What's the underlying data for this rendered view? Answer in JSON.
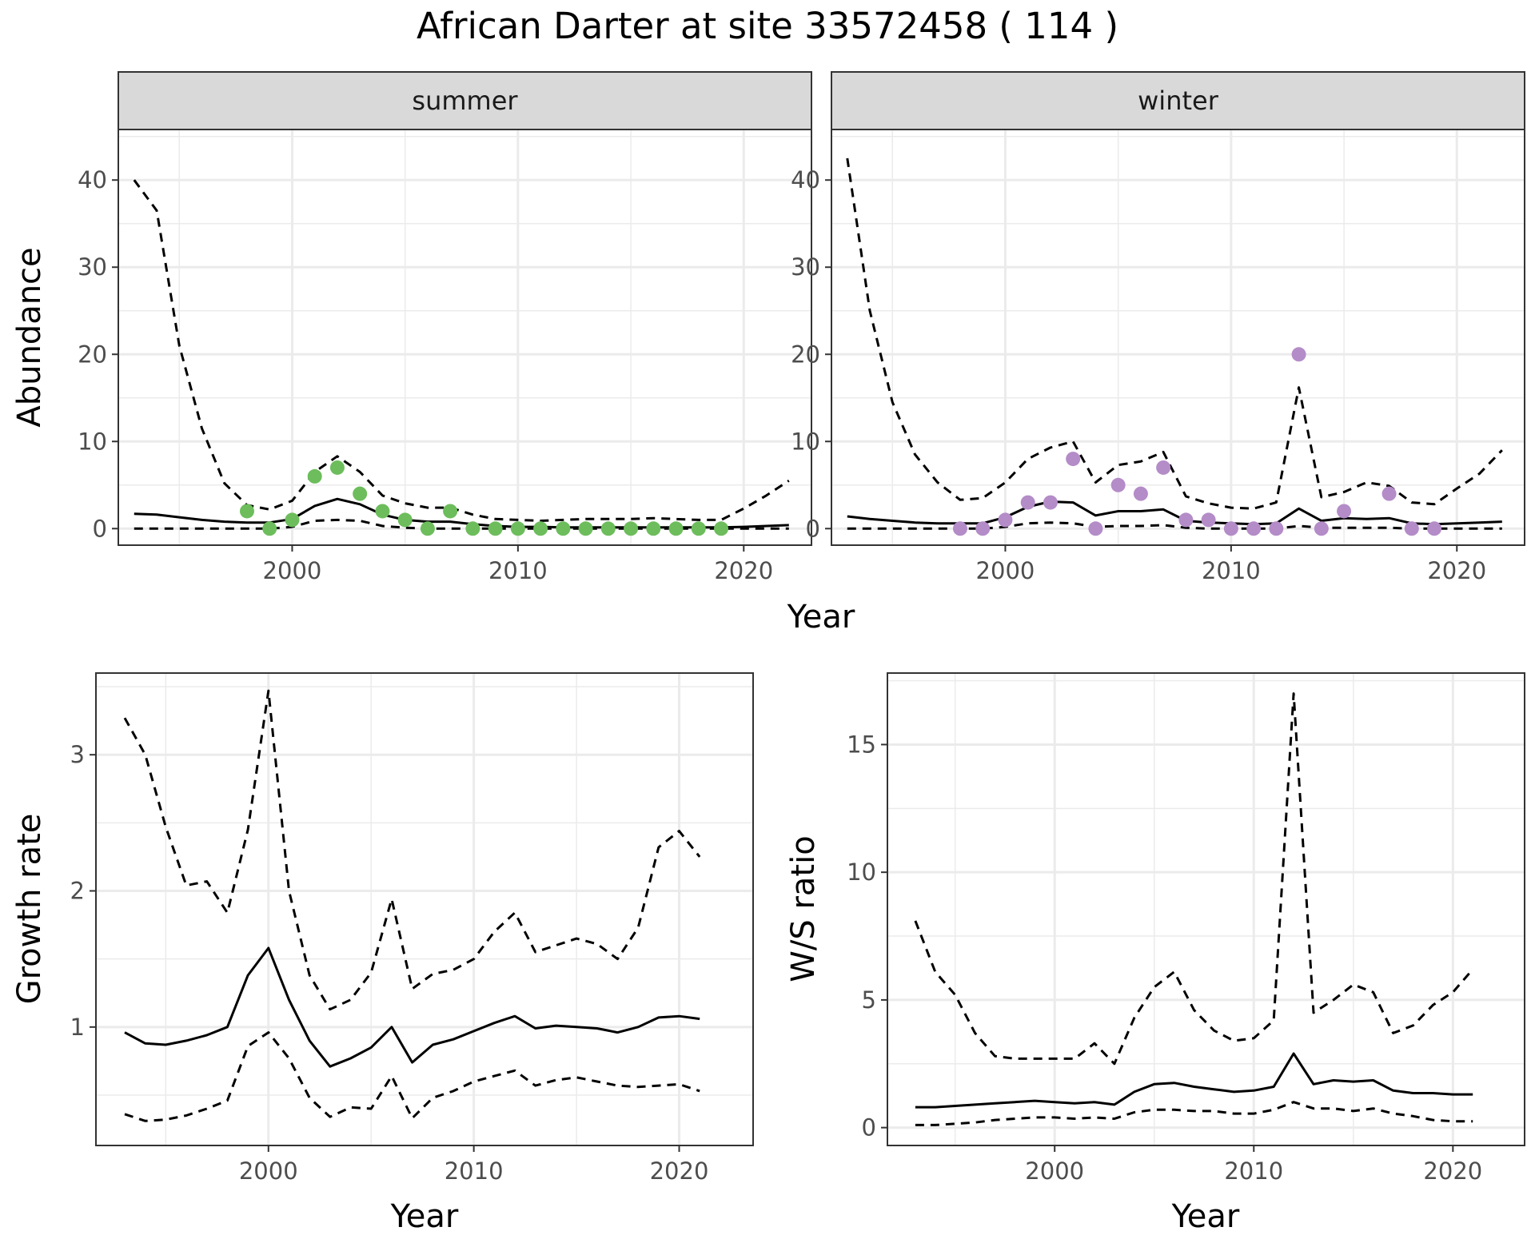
{
  "figure_title": "African Darter at site 33572458 ( 114 )",
  "colors": {
    "summer_points": "#6dbd5c",
    "winter_points": "#b48cc8",
    "lines": "#000000",
    "grid": "#ebebeb",
    "strip_fill": "#d9d9d9"
  },
  "chart_data": [
    {
      "type": "line",
      "panel": "summer",
      "strip_label": "summer",
      "xlabel": "Year",
      "ylabel": "Abundance",
      "xlim": [
        1992.3,
        2023.0
      ],
      "ylim": [
        -1.9,
        45.8
      ],
      "x_ticks": [
        2000,
        2010,
        2020
      ],
      "y_ticks": [
        0,
        10,
        20,
        30,
        40
      ],
      "grid": true,
      "series": [
        {
          "role": "mean",
          "style": "solid",
          "x": [
            1993,
            1994,
            1995,
            1996,
            1997,
            1998,
            1999,
            2000,
            2001,
            2002,
            2003,
            2004,
            2005,
            2006,
            2007,
            2008,
            2009,
            2010,
            2011,
            2012,
            2013,
            2014,
            2015,
            2016,
            2017,
            2018,
            2019,
            2020,
            2021,
            2022
          ],
          "y": [
            1.7,
            1.6,
            1.3,
            1.0,
            0.8,
            0.7,
            0.7,
            1.1,
            2.6,
            3.4,
            2.8,
            1.6,
            1.0,
            0.8,
            0.8,
            0.5,
            0.3,
            0.2,
            0.2,
            0.15,
            0.15,
            0.15,
            0.15,
            0.15,
            0.15,
            0.15,
            0.15,
            0.2,
            0.3,
            0.4
          ]
        },
        {
          "role": "upper",
          "style": "dashed",
          "x": [
            1993,
            1994,
            1995,
            1996,
            1997,
            1998,
            1999,
            2000,
            2001,
            2002,
            2003,
            2004,
            2005,
            2006,
            2007,
            2008,
            2009,
            2010,
            2011,
            2012,
            2013,
            2014,
            2015,
            2016,
            2017,
            2018,
            2019,
            2020,
            2021,
            2022
          ],
          "y": [
            40,
            36.5,
            21,
            11.5,
            5.2,
            2.7,
            2.2,
            3.2,
            6.5,
            8.3,
            6.5,
            3.8,
            2.9,
            2.4,
            2.4,
            1.6,
            1.1,
            1.0,
            0.9,
            1.0,
            1.1,
            1.1,
            1.1,
            1.2,
            1.1,
            1.0,
            1.0,
            2.3,
            3.8,
            5.5
          ]
        },
        {
          "role": "lower",
          "style": "dashed",
          "x": [
            1993,
            1994,
            1995,
            1996,
            1997,
            1998,
            1999,
            2000,
            2001,
            2002,
            2003,
            2004,
            2005,
            2006,
            2007,
            2008,
            2009,
            2010,
            2011,
            2012,
            2013,
            2014,
            2015,
            2016,
            2017,
            2018,
            2019,
            2020,
            2021,
            2022
          ],
          "y": [
            0,
            0,
            0,
            0,
            0,
            0,
            0,
            0.2,
            0.9,
            1.0,
            0.9,
            0.3,
            0.1,
            0,
            0,
            0,
            0,
            0,
            0,
            0,
            0,
            0,
            0,
            0,
            0,
            0,
            0,
            0,
            0,
            0
          ]
        }
      ],
      "points": {
        "x": [
          1998,
          1999,
          2000,
          2001,
          2002,
          2003,
          2004,
          2005,
          2006,
          2007,
          2008,
          2009,
          2010,
          2011,
          2012,
          2013,
          2014,
          2015,
          2016,
          2017,
          2018,
          2019
        ],
        "y": [
          2,
          0,
          1,
          6,
          7,
          4,
          2,
          1,
          0,
          2,
          0,
          0,
          0,
          0,
          0,
          0,
          0,
          0,
          0,
          0,
          0,
          0
        ]
      }
    },
    {
      "type": "line",
      "panel": "winter",
      "strip_label": "winter",
      "xlabel": "Year",
      "ylabel": "Abundance",
      "xlim": [
        1992.3,
        2023.0
      ],
      "ylim": [
        -1.9,
        45.8
      ],
      "x_ticks": [
        2000,
        2010,
        2020
      ],
      "y_ticks": [
        0,
        10,
        20,
        30,
        40
      ],
      "grid": true,
      "series": [
        {
          "role": "mean",
          "style": "solid",
          "x": [
            1993,
            1994,
            1995,
            1996,
            1997,
            1998,
            1999,
            2000,
            2001,
            2002,
            2003,
            2004,
            2005,
            2006,
            2007,
            2008,
            2009,
            2010,
            2011,
            2012,
            2013,
            2014,
            2015,
            2016,
            2017,
            2018,
            2019,
            2020,
            2021,
            2022
          ],
          "y": [
            1.4,
            1.1,
            0.9,
            0.7,
            0.6,
            0.6,
            0.6,
            1.3,
            2.5,
            3.1,
            3.0,
            1.5,
            2.0,
            2.0,
            2.2,
            0.9,
            0.7,
            0.6,
            0.5,
            0.6,
            2.3,
            0.9,
            1.2,
            1.1,
            1.2,
            0.6,
            0.5,
            0.6,
            0.7,
            0.8
          ]
        },
        {
          "role": "upper",
          "style": "dashed",
          "x": [
            1993,
            1994,
            1995,
            1996,
            1997,
            1998,
            1999,
            2000,
            2001,
            2002,
            2003,
            2004,
            2005,
            2006,
            2007,
            2008,
            2009,
            2010,
            2011,
            2012,
            2013,
            2014,
            2015,
            2016,
            2017,
            2018,
            2019,
            2020,
            2021,
            2022
          ],
          "y": [
            42.5,
            25,
            14.5,
            8.5,
            5.3,
            3.3,
            3.5,
            5.3,
            8.0,
            9.3,
            10.0,
            5.3,
            7.3,
            7.7,
            8.8,
            3.7,
            2.9,
            2.4,
            2.3,
            3.0,
            16.2,
            3.6,
            4.2,
            5.3,
            4.9,
            3.0,
            2.8,
            4.6,
            6.3,
            9.0
          ]
        },
        {
          "role": "lower",
          "style": "dashed",
          "x": [
            1993,
            1994,
            1995,
            1996,
            1997,
            1998,
            1999,
            2000,
            2001,
            2002,
            2003,
            2004,
            2005,
            2006,
            2007,
            2008,
            2009,
            2010,
            2011,
            2012,
            2013,
            2014,
            2015,
            2016,
            2017,
            2018,
            2019,
            2020,
            2021,
            2022
          ],
          "y": [
            0,
            0,
            0,
            0,
            0,
            0,
            0,
            0.2,
            0.6,
            0.7,
            0.6,
            0.2,
            0.3,
            0.3,
            0.4,
            0.1,
            0,
            0,
            0,
            0,
            0.3,
            0.1,
            0.1,
            0.1,
            0.1,
            0,
            0,
            0,
            0,
            0
          ]
        }
      ],
      "points": {
        "x": [
          1998,
          1999,
          2000,
          2001,
          2002,
          2003,
          2004,
          2005,
          2006,
          2007,
          2008,
          2009,
          2010,
          2011,
          2012,
          2013,
          2014,
          2015,
          2017,
          2018,
          2019
        ],
        "y": [
          0,
          0,
          1,
          3,
          3,
          8,
          0,
          5,
          4,
          7,
          1,
          1,
          0,
          0,
          0,
          20,
          0,
          2,
          4,
          0,
          0
        ]
      }
    },
    {
      "type": "line",
      "panel": "growth",
      "xlabel": "Year",
      "ylabel": "Growth rate",
      "xlim": [
        1991.6,
        2023.6
      ],
      "ylim": [
        0.13,
        3.6
      ],
      "x_ticks": [
        2000,
        2010,
        2020
      ],
      "y_ticks": [
        1,
        2,
        3
      ],
      "grid": true,
      "series": [
        {
          "role": "mean",
          "style": "solid",
          "x": [
            1993,
            1994,
            1995,
            1996,
            1997,
            1998,
            1999,
            2000,
            2001,
            2002,
            2003,
            2004,
            2005,
            2006,
            2007,
            2008,
            2009,
            2010,
            2011,
            2012,
            2013,
            2014,
            2015,
            2016,
            2017,
            2018,
            2019,
            2020,
            2021
          ],
          "y": [
            0.96,
            0.88,
            0.87,
            0.9,
            0.94,
            1.0,
            1.38,
            1.58,
            1.2,
            0.9,
            0.71,
            0.77,
            0.85,
            1.0,
            0.74,
            0.87,
            0.91,
            0.97,
            1.03,
            1.08,
            0.99,
            1.01,
            1.0,
            0.99,
            0.96,
            1.0,
            1.07,
            1.08,
            1.06
          ]
        },
        {
          "role": "upper",
          "style": "dashed",
          "x": [
            1993,
            1994,
            1995,
            1996,
            1997,
            1998,
            1999,
            2000,
            2001,
            2002,
            2003,
            2004,
            2005,
            2006,
            2007,
            2008,
            2009,
            2010,
            2011,
            2012,
            2013,
            2014,
            2015,
            2016,
            2017,
            2018,
            2019,
            2020,
            2021
          ],
          "y": [
            3.27,
            3.0,
            2.47,
            2.04,
            2.07,
            1.84,
            2.45,
            3.47,
            2.0,
            1.38,
            1.13,
            1.2,
            1.4,
            1.94,
            1.28,
            1.39,
            1.42,
            1.5,
            1.7,
            1.84,
            1.55,
            1.6,
            1.65,
            1.61,
            1.5,
            1.73,
            2.32,
            2.44,
            2.25
          ]
        },
        {
          "role": "lower",
          "style": "dashed",
          "x": [
            1993,
            1994,
            1995,
            1996,
            1997,
            1998,
            1999,
            2000,
            2001,
            2002,
            2003,
            2004,
            2005,
            2006,
            2007,
            2008,
            2009,
            2010,
            2011,
            2012,
            2013,
            2014,
            2015,
            2016,
            2017,
            2018,
            2019,
            2020,
            2021
          ],
          "y": [
            0.36,
            0.31,
            0.32,
            0.35,
            0.4,
            0.46,
            0.86,
            0.96,
            0.77,
            0.48,
            0.34,
            0.41,
            0.4,
            0.64,
            0.33,
            0.48,
            0.53,
            0.6,
            0.64,
            0.68,
            0.57,
            0.61,
            0.63,
            0.6,
            0.57,
            0.56,
            0.57,
            0.58,
            0.53
          ]
        }
      ]
    },
    {
      "type": "line",
      "panel": "ws_ratio",
      "xlabel": "Year",
      "ylabel": "W/S ratio",
      "xlim": [
        1991.6,
        2023.6
      ],
      "ylim": [
        -0.7,
        17.8
      ],
      "x_ticks": [
        2000,
        2010,
        2020
      ],
      "y_ticks": [
        0,
        5,
        10,
        15
      ],
      "grid": true,
      "series": [
        {
          "role": "mean",
          "style": "solid",
          "x": [
            1993,
            1994,
            1995,
            1996,
            1997,
            1998,
            1999,
            2000,
            2001,
            2002,
            2003,
            2004,
            2005,
            2006,
            2007,
            2008,
            2009,
            2010,
            2011,
            2012,
            2013,
            2014,
            2015,
            2016,
            2017,
            2018,
            2019,
            2020,
            2021
          ],
          "y": [
            0.8,
            0.8,
            0.85,
            0.9,
            0.95,
            1.0,
            1.05,
            1.0,
            0.95,
            1.0,
            0.9,
            1.4,
            1.7,
            1.75,
            1.6,
            1.5,
            1.4,
            1.45,
            1.6,
            2.9,
            1.7,
            1.85,
            1.8,
            1.85,
            1.45,
            1.35,
            1.35,
            1.3,
            1.3
          ]
        },
        {
          "role": "upper",
          "style": "dashed",
          "x": [
            1993,
            1994,
            1995,
            1996,
            1997,
            1998,
            1999,
            2000,
            2001,
            2002,
            2003,
            2004,
            2005,
            2006,
            2007,
            2008,
            2009,
            2010,
            2011,
            2012,
            2013,
            2014,
            2015,
            2016,
            2017,
            2018,
            2019,
            2020,
            2021
          ],
          "y": [
            8.1,
            6.1,
            5.2,
            3.7,
            2.8,
            2.7,
            2.7,
            2.7,
            2.7,
            3.3,
            2.5,
            4.3,
            5.5,
            6.1,
            4.6,
            3.8,
            3.4,
            3.5,
            4.2,
            17.0,
            4.5,
            5.0,
            5.6,
            5.3,
            3.7,
            4.0,
            4.8,
            5.3,
            6.2
          ]
        },
        {
          "role": "lower",
          "style": "dashed",
          "x": [
            1993,
            1994,
            1995,
            1996,
            1997,
            1998,
            1999,
            2000,
            2001,
            2002,
            2003,
            2004,
            2005,
            2006,
            2007,
            2008,
            2009,
            2010,
            2011,
            2012,
            2013,
            2014,
            2015,
            2016,
            2017,
            2018,
            2019,
            2020,
            2021
          ],
          "y": [
            0.1,
            0.1,
            0.15,
            0.2,
            0.3,
            0.35,
            0.4,
            0.4,
            0.35,
            0.4,
            0.35,
            0.6,
            0.7,
            0.7,
            0.65,
            0.65,
            0.55,
            0.55,
            0.7,
            1.0,
            0.75,
            0.75,
            0.65,
            0.75,
            0.55,
            0.45,
            0.3,
            0.25,
            0.25
          ]
        }
      ]
    }
  ]
}
